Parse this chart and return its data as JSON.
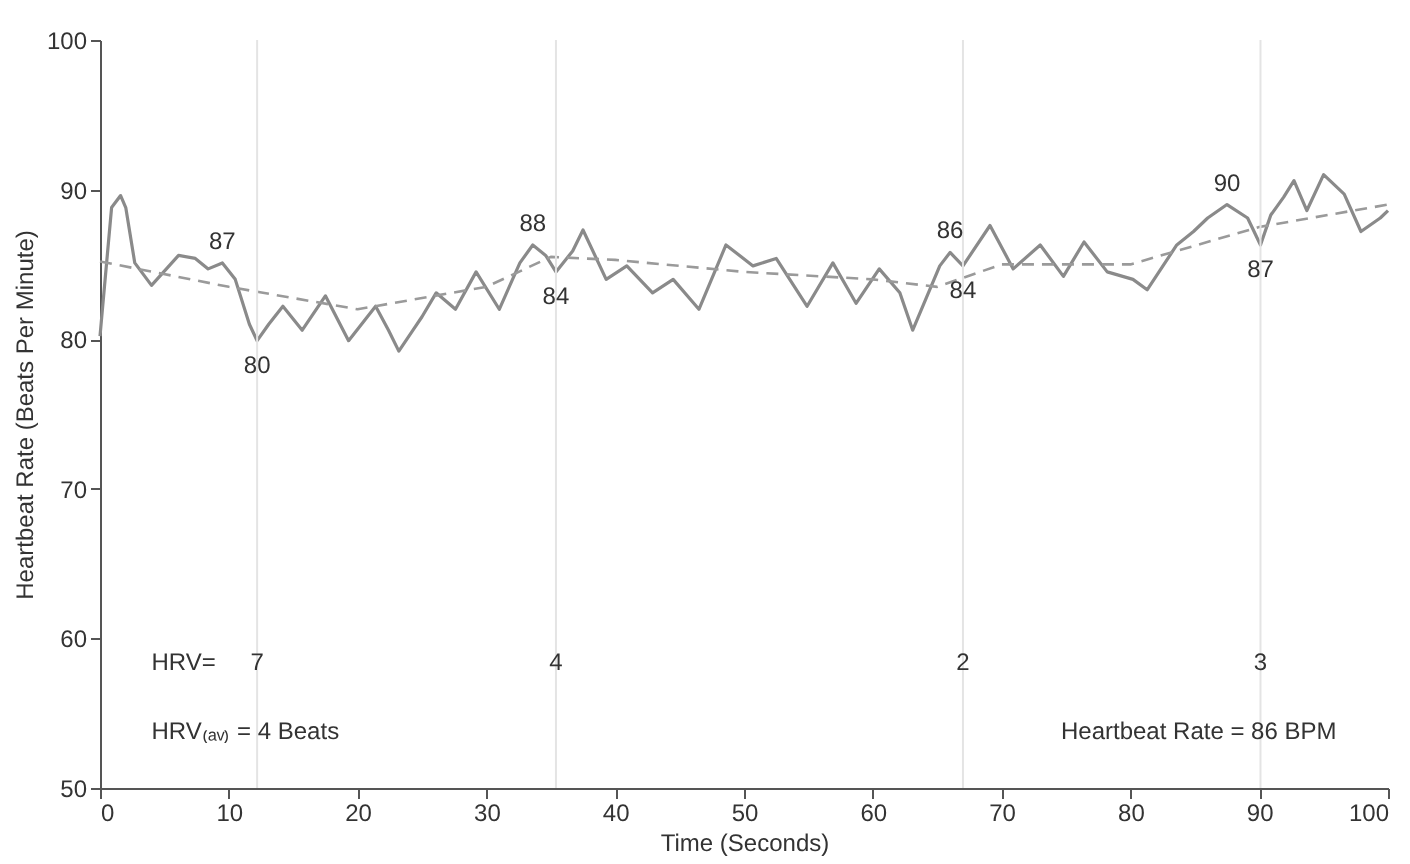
{
  "chart_data": {
    "type": "line",
    "xlabel": "Time (Seconds)",
    "ylabel": "Heartbeat Rate (Beats Per Minute)",
    "xlim": [
      0,
      100
    ],
    "ylim": [
      50,
      100
    ],
    "xticks": [
      0,
      10,
      20,
      30,
      40,
      50,
      60,
      70,
      80,
      90,
      100
    ],
    "yticks": [
      50,
      60,
      70,
      80,
      90,
      100
    ],
    "grid": false,
    "marker": "none",
    "series": [
      {
        "color": "#8a8a8a",
        "line_style": "solid",
        "x": [
          0,
          0.9,
          1.6,
          2.0,
          2.7,
          4.0,
          6.1,
          7.4,
          8.4,
          9.5,
          10.5,
          11.6,
          12.2,
          13.1,
          14.2,
          15.7,
          17.5,
          19.3,
          21.4,
          22.4,
          23.2,
          24.3,
          25.0,
          26.1,
          27.6,
          29.2,
          31.0,
          32.6,
          33.6,
          34.6,
          35.4,
          36.7,
          37.5,
          39.3,
          40.9,
          42.9,
          44.5,
          46.5,
          48.6,
          50.7,
          52.5,
          54.9,
          56.9,
          58.7,
          60.5,
          62.1,
          63.1,
          65.2,
          66.0,
          67.0,
          69.1,
          70.9,
          73.0,
          74.8,
          76.4,
          78.2,
          80.2,
          81.3,
          83.6,
          84.9,
          86.0,
          87.5,
          89.1,
          90.1,
          90.9,
          91.9,
          92.7,
          93.7,
          95.0,
          96.6,
          97.9,
          99.4,
          100
        ],
        "values": [
          80.2,
          88.8,
          89.6,
          88.8,
          85.1,
          83.6,
          85.6,
          85.4,
          84.7,
          85.1,
          84.0,
          81.0,
          79.9,
          81.0,
          82.2,
          80.6,
          82.9,
          79.9,
          82.2,
          80.6,
          79.2,
          80.6,
          81.5,
          83.1,
          82.0,
          84.5,
          82.0,
          85.1,
          86.3,
          85.6,
          84.5,
          85.9,
          87.3,
          84.0,
          84.9,
          83.1,
          84.0,
          82.0,
          86.3,
          84.9,
          85.4,
          82.2,
          85.1,
          82.4,
          84.7,
          83.1,
          80.6,
          84.9,
          85.8,
          84.9,
          87.6,
          84.7,
          86.3,
          84.2,
          86.5,
          84.5,
          84.0,
          83.3,
          86.3,
          87.2,
          88.1,
          89.0,
          88.1,
          86.3,
          88.3,
          89.5,
          90.6,
          88.6,
          91.0,
          89.7,
          87.2,
          88.1,
          88.6
        ]
      },
      {
        "color": "#9a9a9a",
        "line_style": "dashed",
        "x": [
          0,
          10,
          20,
          30,
          35,
          40,
          50,
          60,
          65,
          70,
          80,
          90,
          100
        ],
        "values": [
          85.2,
          83.5,
          82.0,
          83.5,
          85.5,
          85.3,
          84.5,
          84.0,
          83.5,
          85.0,
          85.0,
          87.5,
          89.0
        ]
      }
    ],
    "ref_lines": [
      {
        "axis": "x",
        "value": 12.2,
        "color": "#e4e4e4"
      },
      {
        "axis": "x",
        "value": 35.4,
        "color": "#e4e4e4"
      },
      {
        "axis": "x",
        "value": 67.0,
        "color": "#e4e4e4"
      },
      {
        "axis": "x",
        "value": 90.1,
        "color": "#e4e4e4"
      }
    ],
    "annotations": [
      {
        "text": "87",
        "x": 9.5,
        "y": 85.1
      },
      {
        "text": "80",
        "x": 12.2,
        "y": 79.9
      },
      {
        "text": "88",
        "x": 33.6,
        "y": 86.3
      },
      {
        "text": "84",
        "x": 35.4,
        "y": 84.5
      },
      {
        "text": "86",
        "x": 66.0,
        "y": 85.8
      },
      {
        "text": "84",
        "x": 67.0,
        "y": 84.9
      },
      {
        "text": "90",
        "x": 87.5,
        "y": 89.0
      },
      {
        "text": "87",
        "x": 90.1,
        "y": 86.3
      },
      {
        "text": "7",
        "x": 12.2,
        "y": 58.4
      },
      {
        "text": "4",
        "x": 35.4,
        "y": 58.4
      },
      {
        "text": "2",
        "x": 67.0,
        "y": 58.4
      },
      {
        "text": "3",
        "x": 90.1,
        "y": 58.4
      },
      "HRV=",
      "HRV₍ₐᵥ₎ = 4 Beats",
      "Heartbeat Rate = 86 BPM"
    ]
  }
}
